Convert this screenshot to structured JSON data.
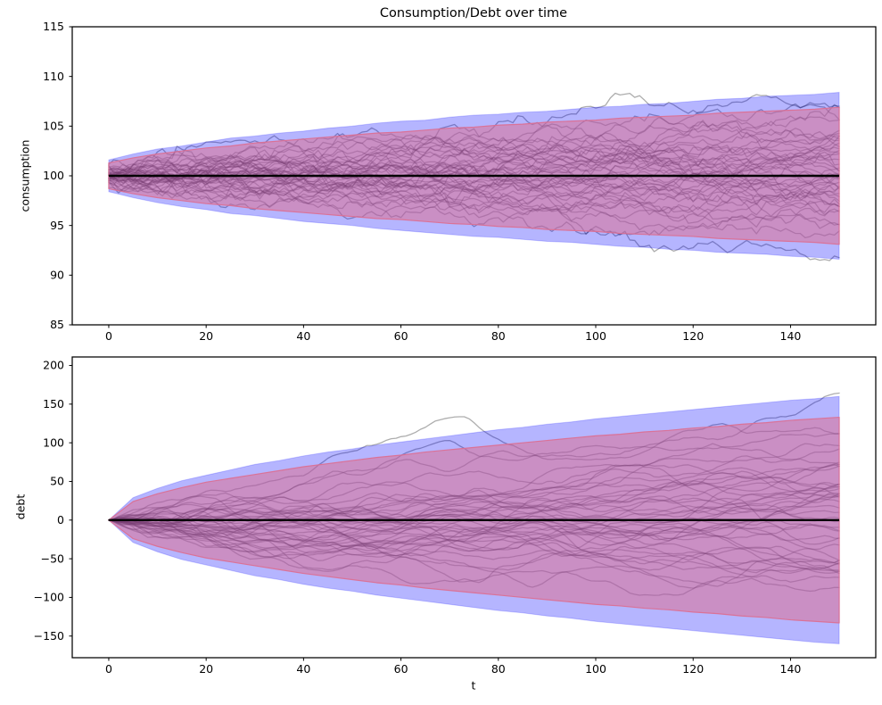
{
  "figure": {
    "title": "Consumption/Debt over time",
    "background": "#ffffff"
  },
  "chart_data": [
    {
      "name": "consumption-chart",
      "type": "line",
      "title": "Consumption/Debt over time",
      "xlabel": "",
      "ylabel": "consumption",
      "xlim": [
        -7.5,
        157.5
      ],
      "ylim": [
        85,
        115
      ],
      "xticks": [
        0,
        20,
        40,
        60,
        80,
        100,
        120,
        140
      ],
      "yticks": [
        85,
        90,
        95,
        100,
        105,
        110,
        115
      ],
      "grid": false,
      "legend": null,
      "mean_line": {
        "value": 100,
        "color": "#000000",
        "width": 2.6
      },
      "band_t": [
        0,
        5,
        10,
        15,
        20,
        25,
        30,
        35,
        40,
        45,
        50,
        55,
        60,
        65,
        70,
        75,
        80,
        85,
        90,
        95,
        100,
        105,
        110,
        115,
        120,
        125,
        130,
        135,
        140,
        145,
        150
      ],
      "bands": [
        {
          "name": "outer-confidence-band",
          "fill": "#0000ff",
          "fill_alpha": 0.29,
          "stroke": "#0000ff",
          "stroke_alpha": 0.18,
          "stroke_width": 1.1,
          "upper": [
            101.6,
            102.2,
            102.7,
            103.0,
            103.4,
            103.8,
            104.0,
            104.3,
            104.5,
            104.8,
            105.0,
            105.3,
            105.5,
            105.6,
            105.9,
            106.1,
            106.2,
            106.4,
            106.5,
            106.7,
            106.9,
            107.0,
            107.2,
            107.3,
            107.5,
            107.7,
            107.8,
            108.0,
            108.1,
            108.2,
            108.4
          ],
          "lower": [
            98.4,
            97.8,
            97.3,
            96.9,
            96.6,
            96.2,
            96.0,
            95.7,
            95.4,
            95.2,
            95.0,
            94.7,
            94.5,
            94.3,
            94.1,
            93.9,
            93.8,
            93.6,
            93.4,
            93.3,
            93.1,
            92.9,
            92.8,
            92.6,
            92.5,
            92.3,
            92.2,
            92.1,
            91.9,
            91.8,
            91.6
          ]
        },
        {
          "name": "inner-confidence-band",
          "fill": "#db7093",
          "fill_alpha": 0.55,
          "stroke": "#db7093",
          "stroke_alpha": 0.95,
          "stroke_width": 1.2,
          "upper": [
            101.3,
            101.8,
            102.2,
            102.5,
            102.8,
            103.0,
            103.3,
            103.5,
            103.7,
            103.9,
            104.1,
            104.3,
            104.4,
            104.6,
            104.8,
            104.9,
            105.1,
            105.2,
            105.4,
            105.5,
            105.6,
            105.8,
            105.9,
            106.0,
            106.1,
            106.3,
            106.4,
            106.5,
            106.6,
            106.7,
            106.9
          ],
          "lower": [
            98.7,
            98.2,
            97.8,
            97.5,
            97.2,
            97.0,
            96.7,
            96.5,
            96.3,
            96.1,
            95.9,
            95.7,
            95.6,
            95.4,
            95.2,
            95.1,
            94.9,
            94.8,
            94.6,
            94.5,
            94.4,
            94.2,
            94.1,
            94.0,
            93.9,
            93.7,
            93.6,
            93.5,
            93.4,
            93.3,
            93.1
          ]
        }
      ],
      "paths": {
        "count": 45,
        "color": "#000000",
        "alpha": 0.32,
        "width": 1.3,
        "style": "random-walk",
        "start": 100,
        "start_std": 0.55,
        "step_std": 0.3,
        "seed": 9
      }
    },
    {
      "name": "debt-chart",
      "type": "line",
      "title": "",
      "xlabel": "t",
      "ylabel": "debt",
      "xlim": [
        -7.5,
        157.5
      ],
      "ylim": [
        -178,
        211
      ],
      "xticks": [
        0,
        20,
        40,
        60,
        80,
        100,
        120,
        140
      ],
      "yticks": [
        -150,
        -100,
        -50,
        0,
        50,
        100,
        150,
        200
      ],
      "grid": false,
      "legend": null,
      "mean_line": {
        "value": 0,
        "color": "#000000",
        "width": 2.4
      },
      "band_t": [
        0,
        5,
        10,
        15,
        20,
        25,
        30,
        35,
        40,
        45,
        50,
        55,
        60,
        65,
        70,
        75,
        80,
        85,
        90,
        95,
        100,
        105,
        110,
        115,
        120,
        125,
        130,
        135,
        140,
        145,
        150
      ],
      "bands": [
        {
          "name": "outer-confidence-band",
          "fill": "#0000ff",
          "fill_alpha": 0.29,
          "stroke": "#0000ff",
          "stroke_alpha": 0.18,
          "stroke_width": 1.1,
          "upper": [
            0,
            29,
            41,
            51,
            58,
            65,
            72,
            77,
            83,
            88,
            92,
            97,
            101,
            105,
            109,
            113,
            117,
            120,
            124,
            127,
            131,
            134,
            137,
            140,
            143,
            146,
            149,
            152,
            155,
            157,
            160
          ],
          "lower": [
            0,
            -29,
            -41,
            -51,
            -58,
            -65,
            -72,
            -77,
            -83,
            -88,
            -92,
            -97,
            -101,
            -105,
            -109,
            -113,
            -117,
            -120,
            -124,
            -127,
            -131,
            -134,
            -137,
            -140,
            -143,
            -146,
            -149,
            -152,
            -155,
            -158,
            -160
          ]
        },
        {
          "name": "inner-confidence-band",
          "fill": "#db7093",
          "fill_alpha": 0.55,
          "stroke": "#db7093",
          "stroke_alpha": 0.95,
          "stroke_width": 1.2,
          "upper": [
            0,
            24,
            34,
            42,
            49,
            54,
            59,
            64,
            69,
            73,
            77,
            81,
            84,
            88,
            91,
            94,
            97,
            100,
            103,
            106,
            109,
            111,
            114,
            116,
            119,
            121,
            124,
            126,
            129,
            131,
            133
          ],
          "lower": [
            0,
            -24,
            -34,
            -42,
            -49,
            -54,
            -59,
            -64,
            -69,
            -73,
            -77,
            -81,
            -84,
            -88,
            -91,
            -94,
            -97,
            -100,
            -103,
            -106,
            -109,
            -111,
            -114,
            -116,
            -119,
            -121,
            -124,
            -126,
            -129,
            -131,
            -133
          ]
        }
      ],
      "paths": {
        "count": 45,
        "color": "#000000",
        "alpha": 0.32,
        "width": 1.3,
        "style": "smoothed-cumulative-walk",
        "start": 0,
        "step_std": 1.24,
        "smoothing": 0.75,
        "seed": 17
      }
    }
  ]
}
